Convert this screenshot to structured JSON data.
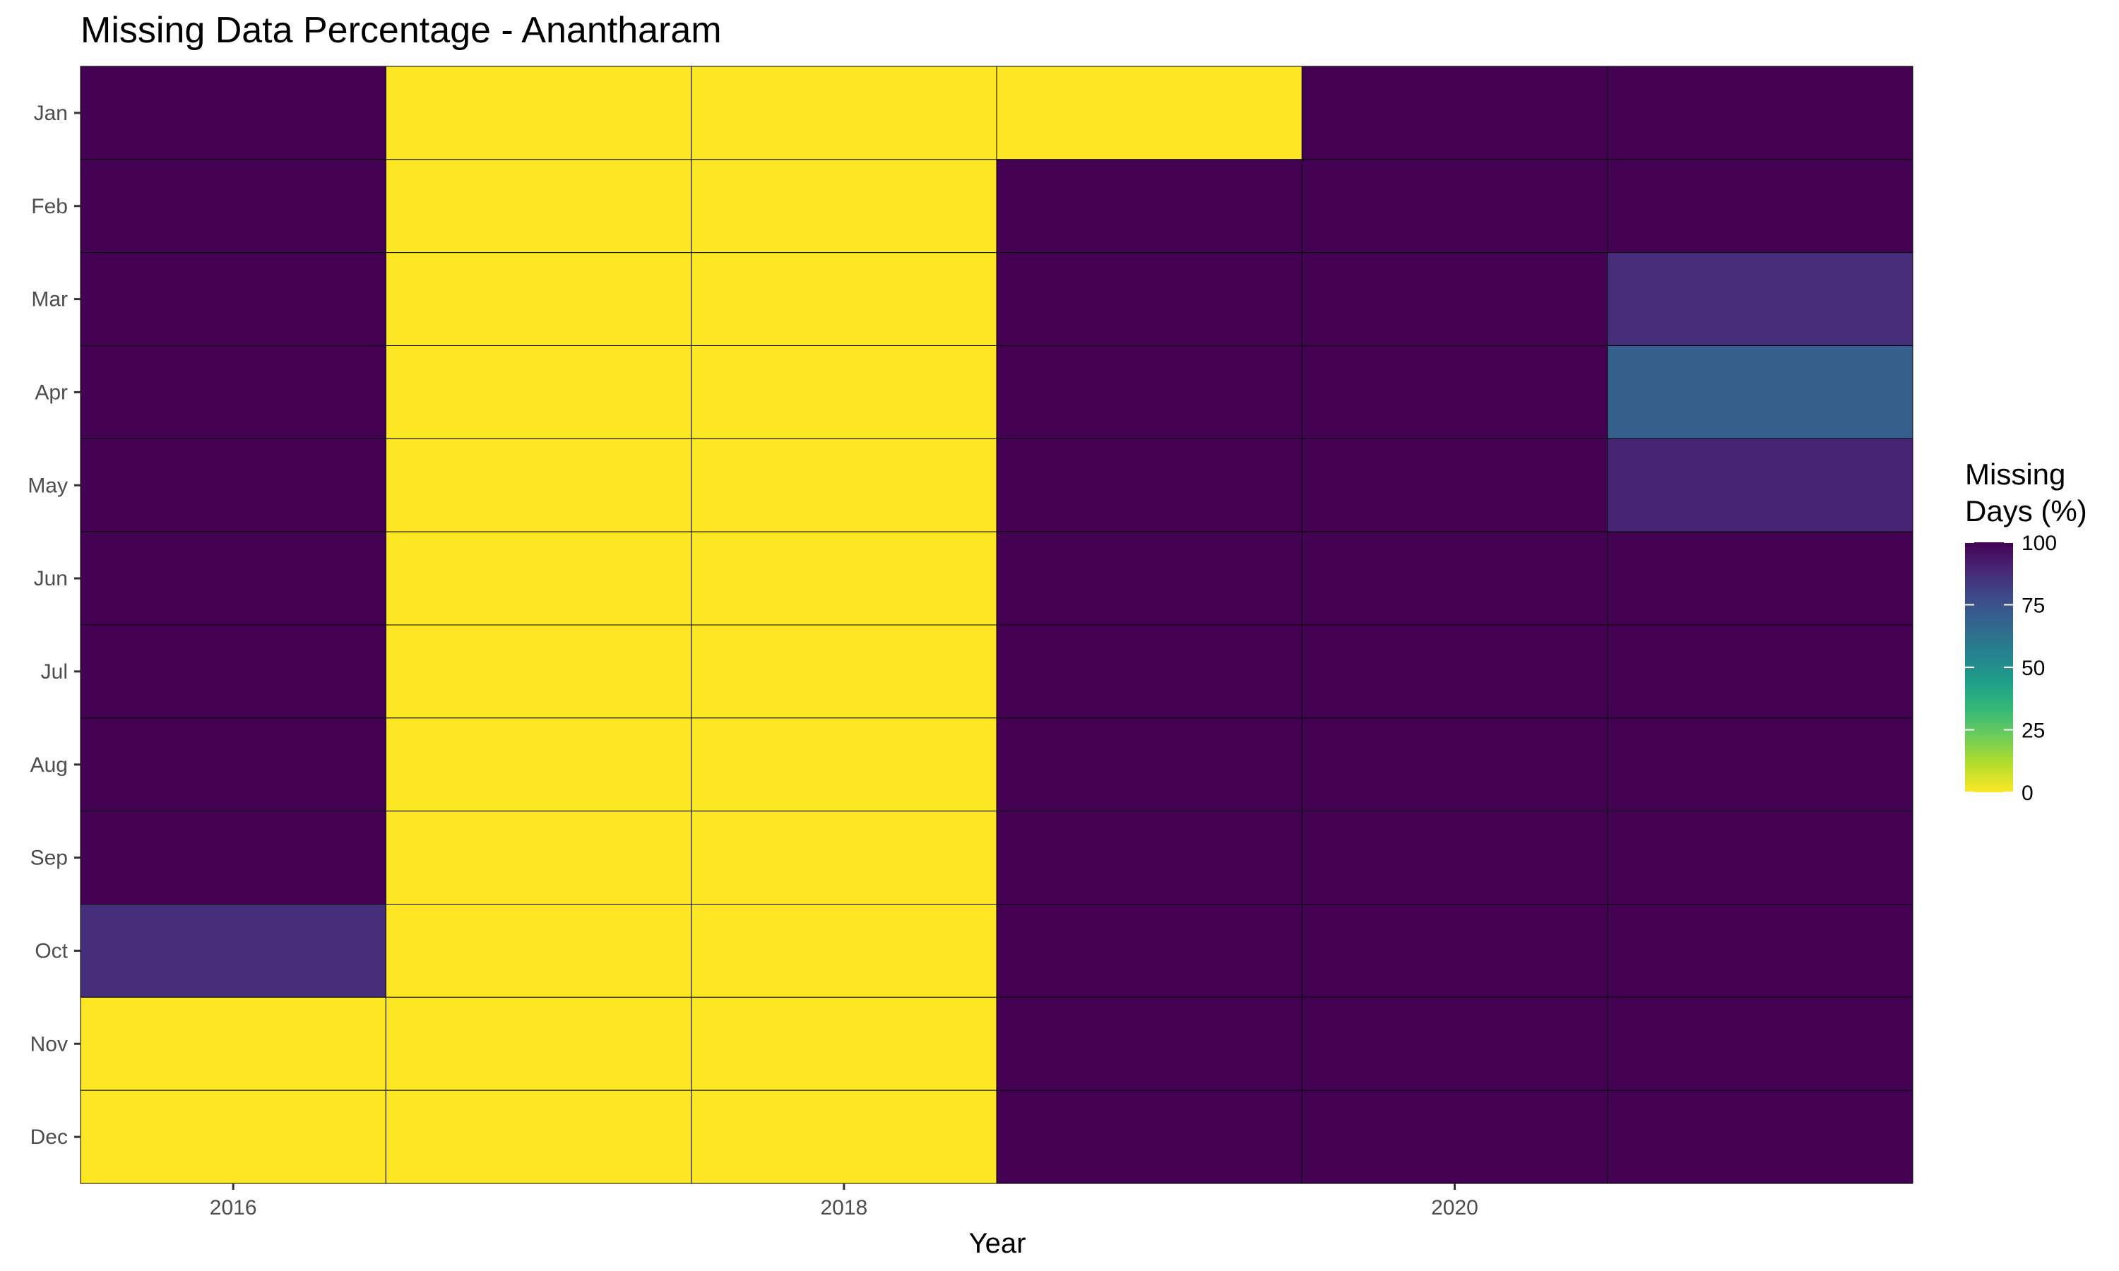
{
  "chart_data": {
    "type": "heatmap",
    "title": "Missing Data Percentage - Anantharam",
    "xlabel": "Year",
    "ylabel": "",
    "x": [
      2016,
      2017,
      2018,
      2019,
      2020,
      2021
    ],
    "x_tick_labels": [
      "2016",
      "2018",
      "2020"
    ],
    "y_categories": [
      "Jan",
      "Feb",
      "Mar",
      "Apr",
      "May",
      "Jun",
      "Jul",
      "Aug",
      "Sep",
      "Oct",
      "Nov",
      "Dec"
    ],
    "values": [
      [
        100,
        0,
        0,
        0,
        100,
        100
      ],
      [
        100,
        0,
        0,
        100,
        100,
        100
      ],
      [
        100,
        0,
        0,
        100,
        100,
        87
      ],
      [
        100,
        0,
        0,
        100,
        100,
        70
      ],
      [
        100,
        0,
        0,
        100,
        100,
        90
      ],
      [
        100,
        0,
        0,
        100,
        100,
        100
      ],
      [
        100,
        0,
        0,
        100,
        100,
        100
      ],
      [
        100,
        0,
        0,
        100,
        100,
        100
      ],
      [
        100,
        0,
        0,
        100,
        100,
        100
      ],
      [
        87,
        0,
        0,
        100,
        100,
        100
      ],
      [
        0,
        0,
        0,
        100,
        100,
        100
      ],
      [
        0,
        0,
        0,
        100,
        100,
        100
      ]
    ],
    "legend": {
      "title_lines": [
        "Missing",
        "Days (%)"
      ],
      "ticks": [
        100,
        75,
        50,
        25,
        0
      ],
      "range": [
        0,
        100
      ],
      "placement": "right"
    },
    "colorscale": "viridis-reversed",
    "grid": false
  }
}
